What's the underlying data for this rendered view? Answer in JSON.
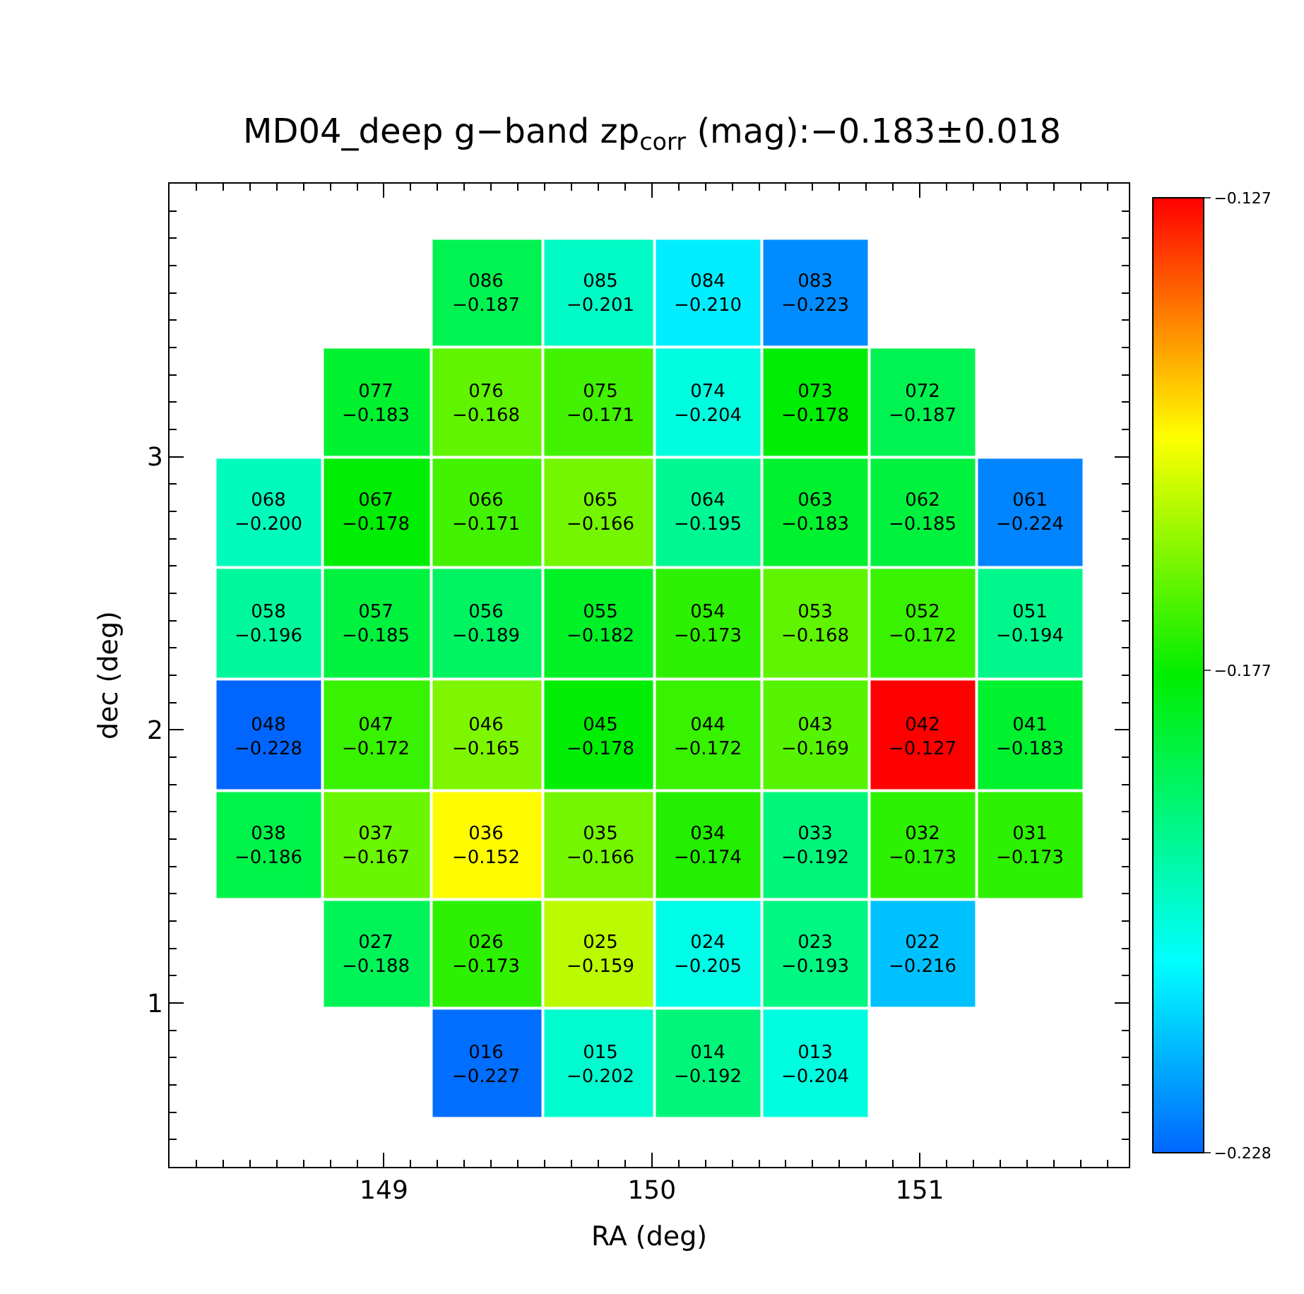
{
  "chart_data": {
    "type": "heatmap",
    "title": "MD04_deep g−band zp$_{corr}$ (mag):−0.183±0.018",
    "xlabel": "RA (deg)",
    "ylabel": "dec (deg)",
    "x": [
      148.57,
      148.97,
      149.38,
      149.81,
      150.21,
      150.61,
      151.01,
      151.41
    ],
    "y": [
      3.6,
      3.2,
      2.8,
      2.39,
      1.98,
      1.58,
      1.18,
      0.78
    ],
    "cells": [
      [
        null,
        null,
        -0.187,
        -0.201,
        -0.21,
        -0.223,
        null,
        null
      ],
      [
        null,
        -0.183,
        -0.168,
        -0.171,
        -0.204,
        -0.178,
        -0.187,
        null
      ],
      [
        -0.2,
        -0.178,
        -0.171,
        -0.166,
        -0.195,
        -0.183,
        -0.185,
        -0.224
      ],
      [
        -0.196,
        -0.185,
        -0.189,
        -0.182,
        -0.173,
        -0.168,
        -0.172,
        -0.194
      ],
      [
        -0.228,
        -0.172,
        -0.165,
        -0.178,
        -0.172,
        -0.169,
        -0.127,
        -0.183
      ],
      [
        -0.186,
        -0.167,
        -0.152,
        -0.166,
        -0.174,
        -0.192,
        -0.173,
        -0.173
      ],
      [
        null,
        -0.188,
        -0.173,
        -0.159,
        -0.205,
        -0.193,
        -0.216,
        null
      ],
      [
        null,
        null,
        -0.227,
        -0.202,
        -0.192,
        -0.204,
        null,
        null
      ]
    ],
    "cell_labels": [
      [
        null,
        null,
        "086\n−0.187",
        "085\n−0.201",
        "084\n−0.210",
        "083\n−0.223",
        null,
        null
      ],
      [
        null,
        "077\n−0.183",
        "076\n−0.168",
        "075\n−0.171",
        "074\n−0.204",
        "073\n−0.178",
        "072\n−0.187",
        null
      ],
      [
        "068\n−0.200",
        "067\n−0.178",
        "066\n−0.171",
        "065\n−0.166",
        "064\n−0.195",
        "063\n−0.183",
        "062\n−0.185",
        "061\n−0.224"
      ],
      [
        "058\n−0.196",
        "057\n−0.185",
        "056\n−0.189",
        "055\n−0.182",
        "054\n−0.173",
        "053\n−0.168",
        "052\n−0.172",
        "051\n−0.194"
      ],
      [
        "048\n−0.228",
        "047\n−0.172",
        "046\n−0.165",
        "045\n−0.178",
        "044\n−0.172",
        "043\n−0.169",
        "042\n−0.127",
        "041\n−0.183"
      ],
      [
        "038\n−0.186",
        "037\n−0.167",
        "036\n−0.152",
        "035\n−0.166",
        "034\n−0.174",
        "033\n−0.192",
        "032\n−0.173",
        "031\n−0.173"
      ],
      [
        null,
        "027\n−0.188",
        "026\n−0.173",
        "025\n−0.159",
        "024\n−0.205",
        "023\n−0.193",
        "022\n−0.216",
        null
      ],
      [
        null,
        null,
        "016\n−0.227",
        "015\n−0.202",
        "014\n−0.192",
        "013\n−0.204",
        null,
        null
      ]
    ],
    "xlim": [
      148.2,
      151.78
    ],
    "ylim": [
      0.4,
      4.0
    ],
    "xticks": [
      149,
      150,
      151
    ],
    "yticks": [
      1,
      2,
      3
    ],
    "clim": [
      -0.228,
      -0.127
    ],
    "cticks": [
      {
        "value": -0.228,
        "label": "−0.228"
      },
      {
        "value": -0.177,
        "label": "−0.177"
      },
      {
        "value": -0.127,
        "label": "−0.127"
      }
    ]
  }
}
